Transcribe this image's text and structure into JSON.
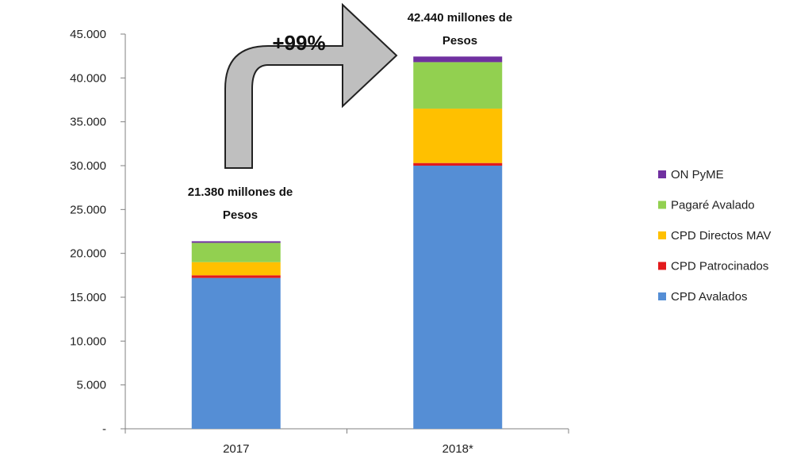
{
  "chart_data": {
    "type": "bar",
    "stacked": true,
    "categories": [
      "2017",
      "2018*"
    ],
    "series": [
      {
        "name": "CPD Avalados",
        "color": "#558ED5",
        "values": [
          17200,
          30000
        ]
      },
      {
        "name": "CPD Patrocinados",
        "color": "#E31A1C",
        "values": [
          300,
          300
        ]
      },
      {
        "name": "CPD Directos MAV",
        "color": "#FFC000",
        "values": [
          1500,
          6200
        ]
      },
      {
        "name": "Pagaré Avalado",
        "color": "#92D050",
        "values": [
          2200,
          5300
        ]
      },
      {
        "name": "ON PyME",
        "color": "#7030A0",
        "values": [
          180,
          640
        ]
      }
    ],
    "ylim": [
      0,
      45000
    ],
    "yticks": [
      "-",
      "5.000",
      "10.000",
      "15.000",
      "20.000",
      "25.000",
      "30.000",
      "35.000",
      "40.000",
      "45.000"
    ],
    "grid": false,
    "legend_position": "right",
    "annotations": {
      "total_2017": [
        "21.380 millones de",
        "Pesos"
      ],
      "total_2018": [
        "42.440 millones de",
        "Pesos"
      ],
      "growth": "+99%"
    }
  }
}
